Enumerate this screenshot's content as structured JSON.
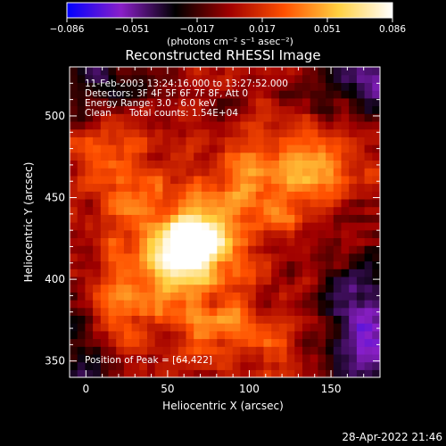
{
  "chart_data": {
    "type": "heatmap",
    "title": "Reconstructed RHESSI Image",
    "colorbar": {
      "ticks": [
        "−0.086",
        "−0.051",
        "−0.017",
        "0.017",
        "0.051",
        "0.086"
      ],
      "units": "(photons cm⁻² s⁻¹ asec⁻²)",
      "range": [
        -0.086,
        0.086
      ],
      "colormap": [
        "#0000ff",
        "#8a1fc8",
        "#000000",
        "#a00000",
        "#ff5000",
        "#ffd040",
        "#ffffff"
      ]
    },
    "xlabel": "Heliocentric X (arcsec)",
    "ylabel": "Heliocentric Y (arcsec)",
    "xlim": [
      -10,
      180
    ],
    "ylim": [
      340,
      530
    ],
    "xticks": [
      "0",
      "50",
      "100",
      "150"
    ],
    "yticks": [
      "350",
      "400",
      "450",
      "500"
    ],
    "annotations": [
      "11-Feb-2003 13:24:16.000 to 13:27:52.000",
      "Detectors: 3F 4F 5F 6F 7F 8F, Att 0",
      "Energy Range: 3.0 - 6.0 keV",
      "Clean",
      "Total counts: 1.54E+04"
    ],
    "peak_label": "Position of Peak = [64,422]",
    "peak": [
      64,
      422
    ]
  },
  "footer": {
    "timestamp": "28-Apr-2022 21:46"
  }
}
